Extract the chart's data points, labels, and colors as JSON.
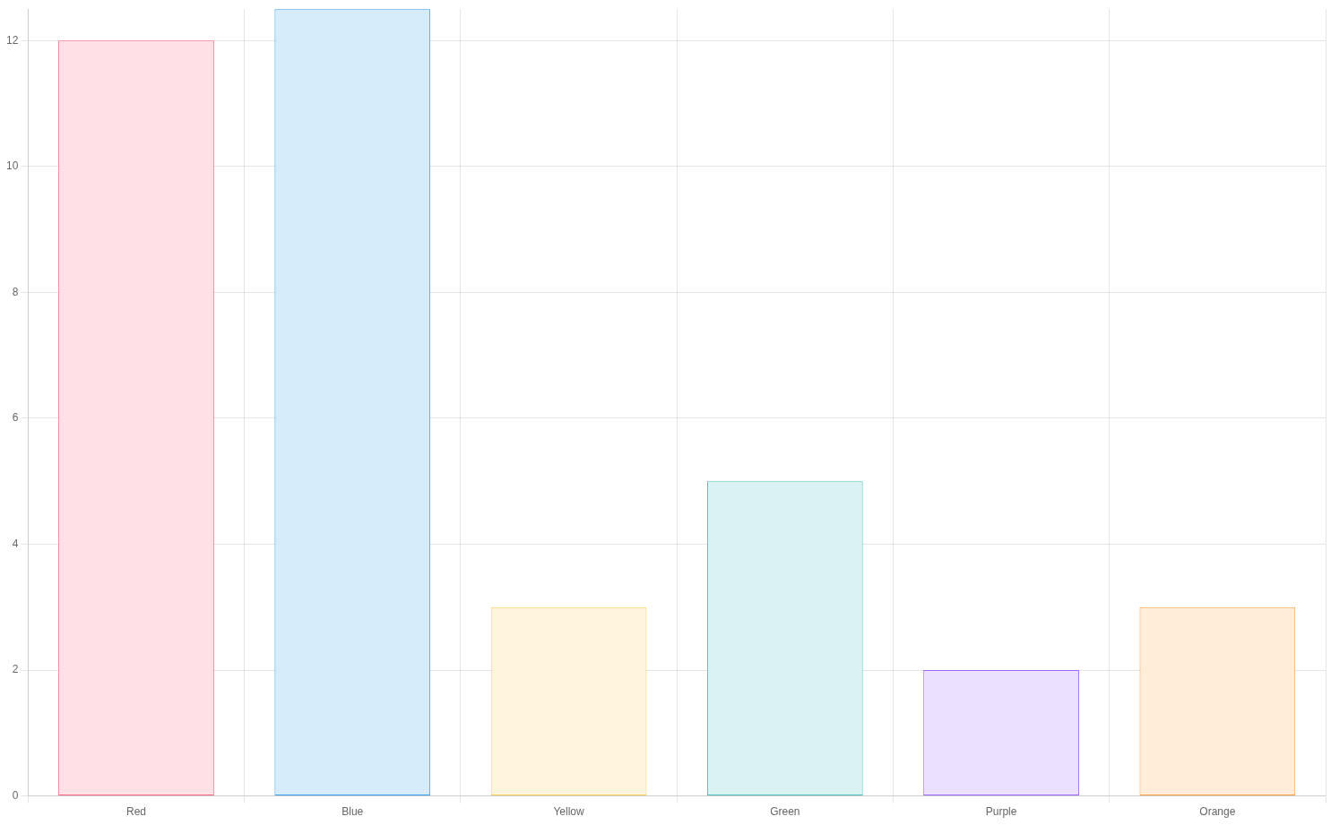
{
  "chart_data": {
    "type": "bar",
    "categories": [
      "Red",
      "Blue",
      "Yellow",
      "Green",
      "Purple",
      "Orange"
    ],
    "values": [
      12,
      12.5,
      3,
      5,
      2,
      3
    ],
    "colors": [
      "#ffe0e6",
      "#d7ecfb",
      "#fff5dd",
      "#dbf2f2",
      "#ebe0ff",
      "#ffecd9"
    ],
    "ylim": [
      0,
      12.5
    ],
    "yticks": [
      0,
      2,
      4,
      6,
      8,
      10,
      12
    ],
    "grid": true
  }
}
